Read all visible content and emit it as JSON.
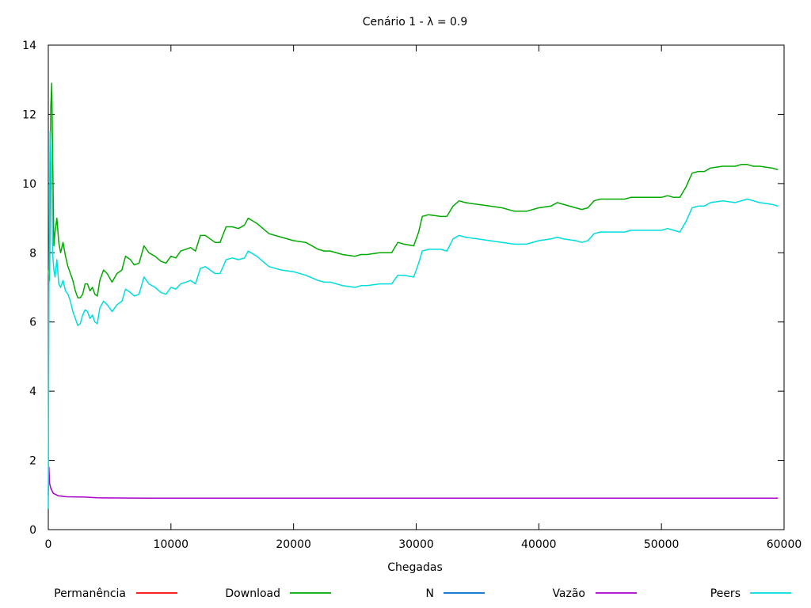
{
  "chart_data": {
    "type": "line",
    "title": "Cenário 1 - λ = 0.9",
    "xlabel": "Chegadas",
    "ylabel": "",
    "xlim": [
      0,
      60000
    ],
    "ylim": [
      0,
      14
    ],
    "xticks": [
      0,
      10000,
      20000,
      30000,
      40000,
      50000,
      60000
    ],
    "yticks": [
      0,
      2,
      4,
      6,
      8,
      10,
      12,
      14
    ],
    "xtick_labels": [
      "0",
      "10000",
      "20000",
      "30000",
      "40000",
      "50000",
      "60000"
    ],
    "ytick_labels": [
      "0",
      "2",
      "4",
      "6",
      "8",
      "10",
      "12",
      "14"
    ],
    "grid": false,
    "legend_position": "bottom",
    "series": [
      {
        "name": "Permanência",
        "color": "#ff0000",
        "points": []
      },
      {
        "name": "Download",
        "color": "#00aa00",
        "points": [
          [
            0,
            7.5
          ],
          [
            100,
            7.2
          ],
          [
            200,
            12.2
          ],
          [
            280,
            12.9
          ],
          [
            350,
            11.0
          ],
          [
            450,
            8.2
          ],
          [
            550,
            8.6
          ],
          [
            700,
            9.0
          ],
          [
            850,
            8.3
          ],
          [
            1000,
            8.0
          ],
          [
            1200,
            8.3
          ],
          [
            1400,
            7.9
          ],
          [
            1600,
            7.6
          ],
          [
            1800,
            7.4
          ],
          [
            2000,
            7.2
          ],
          [
            2200,
            6.9
          ],
          [
            2400,
            6.7
          ],
          [
            2600,
            6.7
          ],
          [
            2800,
            6.8
          ],
          [
            3000,
            7.1
          ],
          [
            3200,
            7.1
          ],
          [
            3400,
            6.9
          ],
          [
            3600,
            7.0
          ],
          [
            3800,
            6.8
          ],
          [
            4000,
            6.75
          ],
          [
            4200,
            7.2
          ],
          [
            4500,
            7.5
          ],
          [
            4800,
            7.4
          ],
          [
            5200,
            7.15
          ],
          [
            5600,
            7.4
          ],
          [
            6000,
            7.5
          ],
          [
            6300,
            7.9
          ],
          [
            6700,
            7.8
          ],
          [
            7000,
            7.65
          ],
          [
            7400,
            7.7
          ],
          [
            7800,
            8.2
          ],
          [
            8200,
            8.0
          ],
          [
            8700,
            7.9
          ],
          [
            9200,
            7.75
          ],
          [
            9600,
            7.7
          ],
          [
            10000,
            7.9
          ],
          [
            10400,
            7.85
          ],
          [
            10800,
            8.05
          ],
          [
            11200,
            8.1
          ],
          [
            11600,
            8.15
          ],
          [
            12000,
            8.05
          ],
          [
            12400,
            8.5
          ],
          [
            12800,
            8.5
          ],
          [
            13200,
            8.4
          ],
          [
            13600,
            8.3
          ],
          [
            14000,
            8.3
          ],
          [
            14500,
            8.75
          ],
          [
            15000,
            8.75
          ],
          [
            15500,
            8.7
          ],
          [
            16000,
            8.8
          ],
          [
            16300,
            9.0
          ],
          [
            17000,
            8.85
          ],
          [
            18000,
            8.55
          ],
          [
            19000,
            8.45
          ],
          [
            20000,
            8.35
          ],
          [
            21000,
            8.3
          ],
          [
            22000,
            8.1
          ],
          [
            22500,
            8.05
          ],
          [
            23000,
            8.05
          ],
          [
            24000,
            7.95
          ],
          [
            25000,
            7.9
          ],
          [
            25500,
            7.95
          ],
          [
            26000,
            7.95
          ],
          [
            27000,
            8.0
          ],
          [
            28000,
            8.0
          ],
          [
            28500,
            8.3
          ],
          [
            29000,
            8.25
          ],
          [
            29800,
            8.2
          ],
          [
            30200,
            8.6
          ],
          [
            30500,
            9.05
          ],
          [
            31000,
            9.1
          ],
          [
            32000,
            9.05
          ],
          [
            32500,
            9.05
          ],
          [
            33000,
            9.35
          ],
          [
            33500,
            9.5
          ],
          [
            34000,
            9.45
          ],
          [
            35000,
            9.4
          ],
          [
            36000,
            9.35
          ],
          [
            37000,
            9.3
          ],
          [
            38000,
            9.2
          ],
          [
            39000,
            9.2
          ],
          [
            40000,
            9.3
          ],
          [
            41000,
            9.35
          ],
          [
            41500,
            9.45
          ],
          [
            42000,
            9.4
          ],
          [
            43000,
            9.3
          ],
          [
            43500,
            9.25
          ],
          [
            44000,
            9.3
          ],
          [
            44500,
            9.5
          ],
          [
            45000,
            9.55
          ],
          [
            46000,
            9.55
          ],
          [
            47000,
            9.55
          ],
          [
            47500,
            9.6
          ],
          [
            48000,
            9.6
          ],
          [
            49000,
            9.6
          ],
          [
            50000,
            9.6
          ],
          [
            50500,
            9.65
          ],
          [
            51000,
            9.6
          ],
          [
            51500,
            9.6
          ],
          [
            52000,
            9.9
          ],
          [
            52500,
            10.3
          ],
          [
            53000,
            10.35
          ],
          [
            53500,
            10.35
          ],
          [
            54000,
            10.45
          ],
          [
            55000,
            10.5
          ],
          [
            56000,
            10.5
          ],
          [
            56500,
            10.55
          ],
          [
            57000,
            10.55
          ],
          [
            57500,
            10.5
          ],
          [
            58000,
            10.5
          ],
          [
            59000,
            10.45
          ],
          [
            59500,
            10.4
          ]
        ]
      },
      {
        "name": "N",
        "color": "#0066cc",
        "points": []
      },
      {
        "name": "Vazão",
        "color": "#aa00cc",
        "points": [
          [
            0,
            1.0
          ],
          [
            50,
            1.8
          ],
          [
            100,
            1.35
          ],
          [
            200,
            1.2
          ],
          [
            400,
            1.05
          ],
          [
            800,
            0.98
          ],
          [
            1500,
            0.95
          ],
          [
            3000,
            0.94
          ],
          [
            4000,
            0.92
          ],
          [
            8000,
            0.91
          ],
          [
            20000,
            0.91
          ],
          [
            40000,
            0.91
          ],
          [
            59500,
            0.91
          ]
        ]
      },
      {
        "name": "Peers",
        "color": "#00dddd",
        "points": [
          [
            0,
            0.6
          ],
          [
            50,
            7.0
          ],
          [
            150,
            11.5
          ],
          [
            250,
            10.5
          ],
          [
            350,
            8.0
          ],
          [
            450,
            7.5
          ],
          [
            550,
            7.3
          ],
          [
            700,
            7.8
          ],
          [
            850,
            7.1
          ],
          [
            1000,
            7.0
          ],
          [
            1200,
            7.2
          ],
          [
            1400,
            6.9
          ],
          [
            1600,
            6.8
          ],
          [
            1800,
            6.6
          ],
          [
            2000,
            6.3
          ],
          [
            2200,
            6.1
          ],
          [
            2400,
            5.9
          ],
          [
            2600,
            5.95
          ],
          [
            2800,
            6.2
          ],
          [
            3000,
            6.35
          ],
          [
            3200,
            6.3
          ],
          [
            3400,
            6.1
          ],
          [
            3600,
            6.2
          ],
          [
            3800,
            6.0
          ],
          [
            4000,
            5.95
          ],
          [
            4200,
            6.4
          ],
          [
            4500,
            6.6
          ],
          [
            4800,
            6.5
          ],
          [
            5200,
            6.3
          ],
          [
            5600,
            6.5
          ],
          [
            6000,
            6.6
          ],
          [
            6300,
            6.95
          ],
          [
            6700,
            6.85
          ],
          [
            7000,
            6.75
          ],
          [
            7400,
            6.8
          ],
          [
            7800,
            7.3
          ],
          [
            8200,
            7.1
          ],
          [
            8700,
            7.0
          ],
          [
            9200,
            6.85
          ],
          [
            9600,
            6.8
          ],
          [
            10000,
            7.0
          ],
          [
            10400,
            6.95
          ],
          [
            10800,
            7.1
          ],
          [
            11200,
            7.15
          ],
          [
            11600,
            7.2
          ],
          [
            12000,
            7.1
          ],
          [
            12400,
            7.55
          ],
          [
            12800,
            7.6
          ],
          [
            13200,
            7.5
          ],
          [
            13600,
            7.4
          ],
          [
            14000,
            7.4
          ],
          [
            14500,
            7.8
          ],
          [
            15000,
            7.85
          ],
          [
            15500,
            7.8
          ],
          [
            16000,
            7.85
          ],
          [
            16300,
            8.05
          ],
          [
            17000,
            7.9
          ],
          [
            18000,
            7.6
          ],
          [
            19000,
            7.5
          ],
          [
            20000,
            7.45
          ],
          [
            21000,
            7.35
          ],
          [
            22000,
            7.2
          ],
          [
            22500,
            7.15
          ],
          [
            23000,
            7.15
          ],
          [
            24000,
            7.05
          ],
          [
            25000,
            7.0
          ],
          [
            25500,
            7.05
          ],
          [
            26000,
            7.05
          ],
          [
            27000,
            7.1
          ],
          [
            28000,
            7.1
          ],
          [
            28500,
            7.35
          ],
          [
            29000,
            7.35
          ],
          [
            29800,
            7.3
          ],
          [
            30200,
            7.7
          ],
          [
            30500,
            8.05
          ],
          [
            31000,
            8.1
          ],
          [
            32000,
            8.1
          ],
          [
            32500,
            8.05
          ],
          [
            33000,
            8.4
          ],
          [
            33500,
            8.5
          ],
          [
            34000,
            8.45
          ],
          [
            35000,
            8.4
          ],
          [
            36000,
            8.35
          ],
          [
            37000,
            8.3
          ],
          [
            38000,
            8.25
          ],
          [
            39000,
            8.25
          ],
          [
            40000,
            8.35
          ],
          [
            41000,
            8.4
          ],
          [
            41500,
            8.45
          ],
          [
            42000,
            8.4
          ],
          [
            43000,
            8.35
          ],
          [
            43500,
            8.3
          ],
          [
            44000,
            8.35
          ],
          [
            44500,
            8.55
          ],
          [
            45000,
            8.6
          ],
          [
            46000,
            8.6
          ],
          [
            47000,
            8.6
          ],
          [
            47500,
            8.65
          ],
          [
            48000,
            8.65
          ],
          [
            49000,
            8.65
          ],
          [
            50000,
            8.65
          ],
          [
            50500,
            8.7
          ],
          [
            51000,
            8.65
          ],
          [
            51500,
            8.6
          ],
          [
            52000,
            8.9
          ],
          [
            52500,
            9.3
          ],
          [
            53000,
            9.35
          ],
          [
            53500,
            9.35
          ],
          [
            54000,
            9.45
          ],
          [
            55000,
            9.5
          ],
          [
            56000,
            9.45
          ],
          [
            56500,
            9.5
          ],
          [
            57000,
            9.55
          ],
          [
            57500,
            9.5
          ],
          [
            58000,
            9.45
          ],
          [
            59000,
            9.4
          ],
          [
            59500,
            9.35
          ]
        ]
      }
    ]
  }
}
